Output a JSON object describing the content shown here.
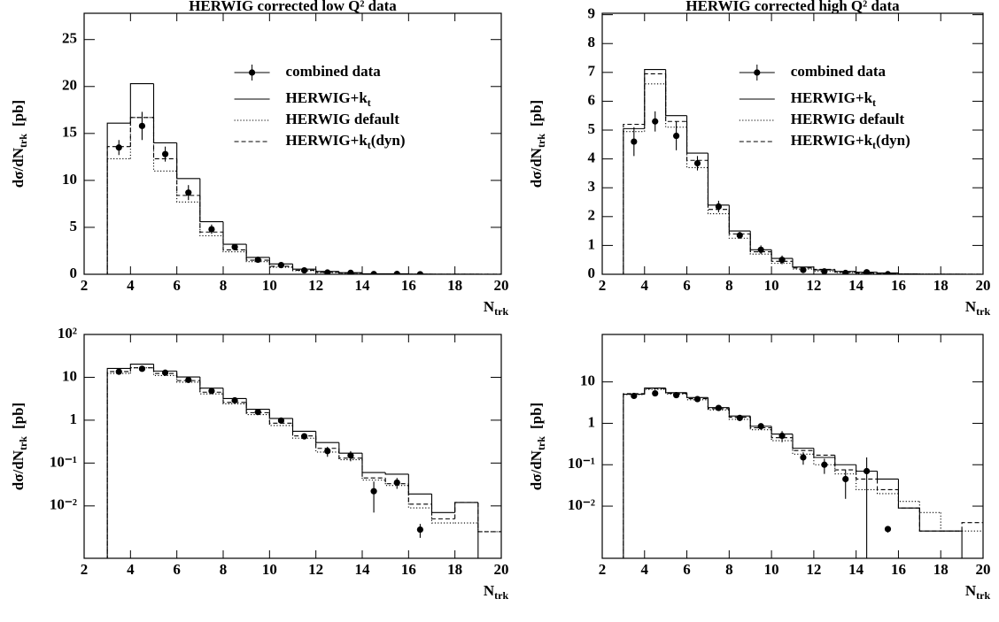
{
  "chart_data": [
    {
      "type": "histogram",
      "title": "HERWIG corrected low Q² data",
      "ylabel": {
        "text": "dσ/dN",
        "sub": "trk",
        "unit": "[pb]"
      },
      "xlabel": {
        "text": "N",
        "sub": "trk"
      },
      "xlim": [
        2,
        20
      ],
      "xticks": [
        2,
        4,
        6,
        8,
        10,
        12,
        14,
        16,
        18,
        20
      ],
      "ylim": [
        0,
        27.8
      ],
      "yticks": [
        0,
        5,
        10,
        15,
        20,
        25
      ],
      "log_y": false,
      "legend": "upper right",
      "bins": [
        3,
        4,
        5,
        6,
        7,
        8,
        9,
        10,
        11,
        12,
        13,
        14,
        15,
        16,
        17,
        18,
        19,
        20
      ],
      "points": {
        "name": "combined data",
        "color": "#000",
        "x": [
          3.5,
          4.5,
          5.5,
          6.5,
          7.5,
          8.5,
          9.5,
          10.5,
          11.5,
          12.5,
          13.5,
          14.5,
          15.5,
          16.5
        ],
        "values": [
          13.5,
          15.8,
          12.8,
          8.7,
          4.8,
          2.9,
          1.55,
          0.98,
          0.42,
          0.19,
          0.15,
          0.022,
          0.035,
          0.0028
        ],
        "errors": [
          0.8,
          1.5,
          0.8,
          0.8,
          0.5,
          0.3,
          0.15,
          0.1,
          0.06,
          0.05,
          0.04,
          0.015,
          0.01,
          0.001
        ]
      },
      "series": [
        {
          "name": "HERWIG+k",
          "name_sub": "t",
          "dash": "solid",
          "color": "#000",
          "values": [
            16.1,
            20.3,
            14.0,
            10.2,
            5.6,
            3.2,
            1.8,
            1.1,
            0.55,
            0.3,
            0.17,
            0.06,
            0.055,
            0.019,
            0.007,
            0.012,
            0
          ]
        },
        {
          "name": "HERWIG default",
          "dash": "dotted",
          "color": "#000",
          "values": [
            12.3,
            16.7,
            11.0,
            7.7,
            4.1,
            2.4,
            1.35,
            0.75,
            0.38,
            0.18,
            0.12,
            0.04,
            0.03,
            0.009,
            0.004,
            0.004,
            0.0025
          ]
        },
        {
          "name": "HERWIG+k",
          "name_sub": "t",
          "name_end": "(dyn)",
          "dash": "dashed",
          "color": "#000",
          "values": [
            13.6,
            16.7,
            12.3,
            8.4,
            4.5,
            2.6,
            1.5,
            0.85,
            0.43,
            0.22,
            0.13,
            0.045,
            0.033,
            0.011,
            0.005,
            0.012,
            0.0025
          ]
        }
      ]
    },
    {
      "type": "histogram",
      "title": "HERWIG corrected high Q² data",
      "ylabel": {
        "text": "dσ/dN",
        "sub": "trk",
        "unit": "[pb]"
      },
      "xlabel": {
        "text": "N",
        "sub": "trk"
      },
      "xlim": [
        2,
        20
      ],
      "xticks": [
        2,
        4,
        6,
        8,
        10,
        12,
        14,
        16,
        18,
        20
      ],
      "ylim": [
        0,
        9.05
      ],
      "yticks": [
        0,
        1,
        2,
        3,
        4,
        5,
        6,
        7,
        8,
        9
      ],
      "log_y": false,
      "legend": "upper right",
      "bins": [
        3,
        4,
        5,
        6,
        7,
        8,
        9,
        10,
        11,
        12,
        13,
        14,
        15,
        16,
        17,
        18,
        19,
        20
      ],
      "points": {
        "name": "combined data",
        "color": "#000",
        "x": [
          3.5,
          4.5,
          5.5,
          6.5,
          7.5,
          8.5,
          9.5,
          10.5,
          11.5,
          12.5,
          13.5,
          14.5,
          15.5
        ],
        "values": [
          4.6,
          5.3,
          4.8,
          3.85,
          2.35,
          1.35,
          0.85,
          0.5,
          0.15,
          0.1,
          0.045,
          0.07,
          0.0028
        ],
        "errors": [
          0.5,
          0.35,
          0.5,
          0.25,
          0.2,
          0.12,
          0.15,
          0.15,
          0.05,
          0.04,
          0.03,
          0.08,
          0.0005
        ]
      },
      "series": [
        {
          "name": "HERWIG+k",
          "name_sub": "t",
          "dash": "solid",
          "color": "#000",
          "values": [
            5.05,
            7.1,
            5.5,
            4.2,
            2.4,
            1.5,
            0.85,
            0.55,
            0.25,
            0.15,
            0.1,
            0.07,
            0.045,
            0.009,
            0.0025,
            0.0025,
            0
          ]
        },
        {
          "name": "HERWIG default",
          "dash": "dotted",
          "color": "#000",
          "values": [
            4.95,
            6.6,
            5.1,
            3.7,
            2.1,
            1.25,
            0.7,
            0.38,
            0.18,
            0.1,
            0.06,
            0.025,
            0.02,
            0.013,
            0.007,
            0.0025,
            0.0025
          ]
        },
        {
          "name": "HERWIG+k",
          "name_sub": "t",
          "name_end": "(dyn)",
          "dash": "dashed",
          "color": "#000",
          "values": [
            5.2,
            6.95,
            5.3,
            3.95,
            2.25,
            1.4,
            0.78,
            0.45,
            0.22,
            0.17,
            0.075,
            0.045,
            0.025,
            0.009,
            0.0025,
            0.0025,
            0.004
          ]
        }
      ]
    },
    {
      "type": "histogram",
      "ylabel": {
        "text": "dσ/dN",
        "sub": "trk",
        "unit": "[pb]"
      },
      "xlabel": {
        "text": "N",
        "sub": "trk"
      },
      "xlim": [
        2,
        20
      ],
      "xticks": [
        2,
        4,
        6,
        8,
        10,
        12,
        14,
        16,
        18,
        20
      ],
      "ylim": [
        0.0006,
        100
      ],
      "log_y": true,
      "yticks": [
        {
          "value": 100,
          "label": "10²"
        },
        10,
        1,
        {
          "value": 0.1,
          "label": "10⁻¹"
        },
        {
          "value": 0.01,
          "label": "10⁻²"
        }
      ],
      "bins": [
        3,
        4,
        5,
        6,
        7,
        8,
        9,
        10,
        11,
        12,
        13,
        14,
        15,
        16,
        17,
        18,
        19,
        20
      ],
      "points": {
        "color": "#000",
        "x": [
          3.5,
          4.5,
          5.5,
          6.5,
          7.5,
          8.5,
          9.5,
          10.5,
          11.5,
          12.5,
          13.5,
          14.5,
          15.5,
          16.5
        ],
        "values": [
          13.5,
          15.8,
          12.8,
          8.7,
          4.8,
          2.9,
          1.55,
          0.98,
          0.42,
          0.19,
          0.15,
          0.022,
          0.035,
          0.0028
        ],
        "errors": [
          0.8,
          1.5,
          0.8,
          0.8,
          0.5,
          0.3,
          0.15,
          0.1,
          0.06,
          0.05,
          0.04,
          0.015,
          0.01,
          0.001
        ]
      },
      "series": [
        {
          "dash": "solid",
          "color": "#000",
          "values": [
            16.1,
            20.3,
            14.0,
            10.2,
            5.6,
            3.2,
            1.8,
            1.1,
            0.55,
            0.3,
            0.17,
            0.06,
            0.055,
            0.019,
            0.007,
            0.012,
            0
          ]
        },
        {
          "dash": "dotted",
          "color": "#000",
          "values": [
            12.3,
            16.7,
            11.0,
            7.7,
            4.1,
            2.4,
            1.35,
            0.75,
            0.38,
            0.18,
            0.12,
            0.04,
            0.03,
            0.009,
            0.004,
            0.004,
            0.0025
          ]
        },
        {
          "dash": "dashed",
          "color": "#000",
          "values": [
            13.6,
            16.7,
            12.3,
            8.4,
            4.5,
            2.6,
            1.5,
            0.85,
            0.43,
            0.22,
            0.13,
            0.045,
            0.033,
            0.011,
            0.005,
            0.012,
            0.0025
          ]
        }
      ]
    },
    {
      "type": "histogram",
      "ylabel": {
        "text": "dσ/dN",
        "sub": "trk",
        "unit": "[pb]"
      },
      "xlabel": {
        "text": "N",
        "sub": "trk"
      },
      "xlim": [
        2,
        20
      ],
      "xticks": [
        2,
        4,
        6,
        8,
        10,
        12,
        14,
        16,
        18,
        20
      ],
      "ylim": [
        0.00055,
        140
      ],
      "log_y": true,
      "yticks": [
        10,
        1,
        {
          "value": 0.1,
          "label": "10⁻¹"
        },
        {
          "value": 0.01,
          "label": "10⁻²"
        }
      ],
      "bins": [
        3,
        4,
        5,
        6,
        7,
        8,
        9,
        10,
        11,
        12,
        13,
        14,
        15,
        16,
        17,
        18,
        19,
        20
      ],
      "points": {
        "color": "#000",
        "x": [
          3.5,
          4.5,
          5.5,
          6.5,
          7.5,
          8.5,
          9.5,
          10.5,
          11.5,
          12.5,
          13.5,
          14.5,
          15.5
        ],
        "values": [
          4.6,
          5.3,
          4.8,
          3.85,
          2.35,
          1.35,
          0.85,
          0.5,
          0.15,
          0.1,
          0.045,
          0.07,
          0.0028
        ],
        "errors": [
          0.5,
          0.35,
          0.5,
          0.25,
          0.2,
          0.12,
          0.15,
          0.15,
          0.05,
          0.04,
          0.03,
          0.08,
          0.0005
        ]
      },
      "series": [
        {
          "dash": "solid",
          "color": "#000",
          "values": [
            5.05,
            7.1,
            5.5,
            4.2,
            2.4,
            1.5,
            0.85,
            0.55,
            0.25,
            0.15,
            0.1,
            0.07,
            0.045,
            0.009,
            0.0025,
            0.0025,
            0
          ]
        },
        {
          "dash": "dotted",
          "color": "#000",
          "values": [
            4.95,
            6.6,
            5.1,
            3.7,
            2.1,
            1.25,
            0.7,
            0.38,
            0.18,
            0.1,
            0.06,
            0.025,
            0.02,
            0.013,
            0.007,
            0.0025,
            0.0025
          ]
        },
        {
          "dash": "dashed",
          "color": "#000",
          "values": [
            5.2,
            6.95,
            5.3,
            3.95,
            2.25,
            1.4,
            0.78,
            0.45,
            0.22,
            0.17,
            0.075,
            0.045,
            0.025,
            0.009,
            0.0025,
            0.0025,
            0.004
          ]
        }
      ]
    }
  ]
}
